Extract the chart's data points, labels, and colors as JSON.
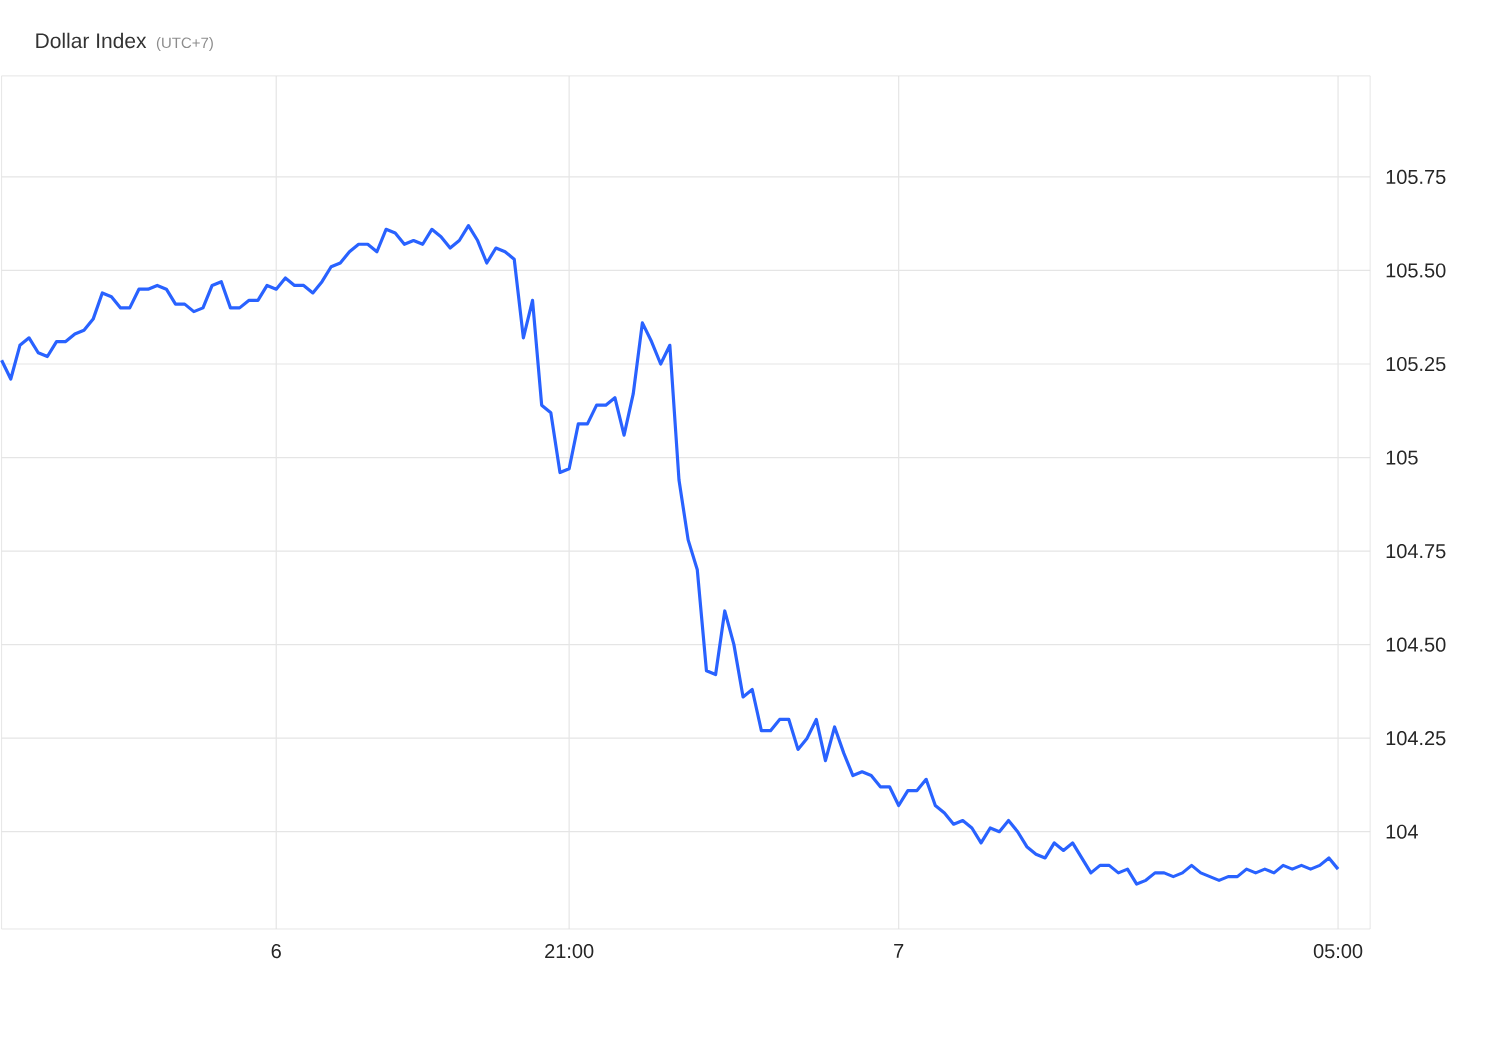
{
  "chart_data": {
    "type": "line",
    "title": "Dollar Index",
    "subtitle": "(UTC+7)",
    "categories": [
      null,
      null,
      null,
      null,
      null,
      null,
      null,
      null,
      null,
      null,
      null,
      null,
      null,
      null,
      null,
      null,
      null,
      null,
      null,
      null,
      null,
      null,
      null,
      null,
      null,
      null,
      null,
      null,
      null,
      null,
      "6",
      null,
      null,
      null,
      null,
      null,
      null,
      null,
      null,
      null,
      null,
      null,
      null,
      null,
      null,
      null,
      null,
      null,
      null,
      null,
      null,
      null,
      null,
      null,
      null,
      null,
      null,
      null,
      null,
      null,
      null,
      null,
      "21:00",
      null,
      null,
      null,
      null,
      null,
      null,
      null,
      null,
      null,
      null,
      null,
      null,
      null,
      null,
      null,
      null,
      null,
      null,
      null,
      null,
      null,
      null,
      null,
      null,
      null,
      null,
      null,
      null,
      null,
      null,
      null,
      null,
      null,
      null,
      null,
      "7",
      null,
      null,
      null,
      null,
      null,
      null,
      null,
      null,
      null,
      null,
      null,
      null,
      null,
      null,
      null,
      null,
      null,
      null,
      null,
      null,
      null,
      null,
      null,
      null,
      null,
      null,
      null,
      null,
      null,
      null,
      null,
      null,
      null,
      null,
      null,
      null,
      null,
      null,
      null,
      null,
      null,
      null,
      null,
      null,
      null,
      null,
      null,
      "05:00"
    ],
    "series": [
      {
        "color": "#2962ff",
        "values": [
          105.26,
          105.21,
          105.3,
          105.32,
          105.28,
          105.27,
          105.31,
          105.31,
          105.33,
          105.34,
          105.37,
          105.44,
          105.43,
          105.4,
          105.4,
          105.45,
          105.45,
          105.46,
          105.45,
          105.41,
          105.41,
          105.39,
          105.4,
          105.46,
          105.47,
          105.4,
          105.4,
          105.42,
          105.42,
          105.46,
          105.45,
          105.48,
          105.46,
          105.46,
          105.44,
          105.47,
          105.51,
          105.52,
          105.55,
          105.57,
          105.57,
          105.55,
          105.61,
          105.6,
          105.57,
          105.58,
          105.57,
          105.61,
          105.59,
          105.56,
          105.58,
          105.62,
          105.58,
          105.52,
          105.56,
          105.55,
          105.53,
          105.32,
          105.42,
          105.14,
          105.12,
          104.96,
          104.97,
          105.09,
          105.09,
          105.14,
          105.14,
          105.16,
          105.06,
          105.17,
          105.36,
          105.31,
          105.25,
          105.3,
          104.94,
          104.78,
          104.7,
          104.43,
          104.42,
          104.59,
          104.5,
          104.36,
          104.38,
          104.27,
          104.27,
          104.3,
          104.3,
          104.22,
          104.25,
          104.3,
          104.19,
          104.28,
          104.21,
          104.15,
          104.16,
          104.15,
          104.12,
          104.12,
          104.07,
          104.11,
          104.11,
          104.14,
          104.07,
          104.05,
          104.02,
          104.03,
          104.01,
          103.97,
          104.01,
          104.0,
          104.03,
          104.0,
          103.96,
          103.94,
          103.93,
          103.97,
          103.95,
          103.97,
          103.93,
          103.89,
          103.91,
          103.91,
          103.89,
          103.9,
          103.86,
          103.87,
          103.89,
          103.89,
          103.88,
          103.89,
          103.91,
          103.89,
          103.88,
          103.87,
          103.88,
          103.88,
          103.9,
          103.89,
          103.9,
          103.89,
          103.91,
          103.9,
          103.91,
          103.9,
          103.91,
          103.93,
          103.9
        ]
      }
    ],
    "ylim": [
      103.74,
      106.02
    ],
    "yticks": [
      104,
      {
        "value": 104.25,
        "label": "104.25"
      },
      {
        "value": 104.5,
        "label": "104.50"
      },
      {
        "value": 104.75,
        "label": "104.75"
      },
      105,
      {
        "value": 105.25,
        "label": "105.25"
      },
      {
        "value": 105.5,
        "label": "105.50"
      },
      {
        "value": 105.75,
        "label": "105.75"
      }
    ],
    "grid": true,
    "marker": "none",
    "line_style": "solid"
  }
}
